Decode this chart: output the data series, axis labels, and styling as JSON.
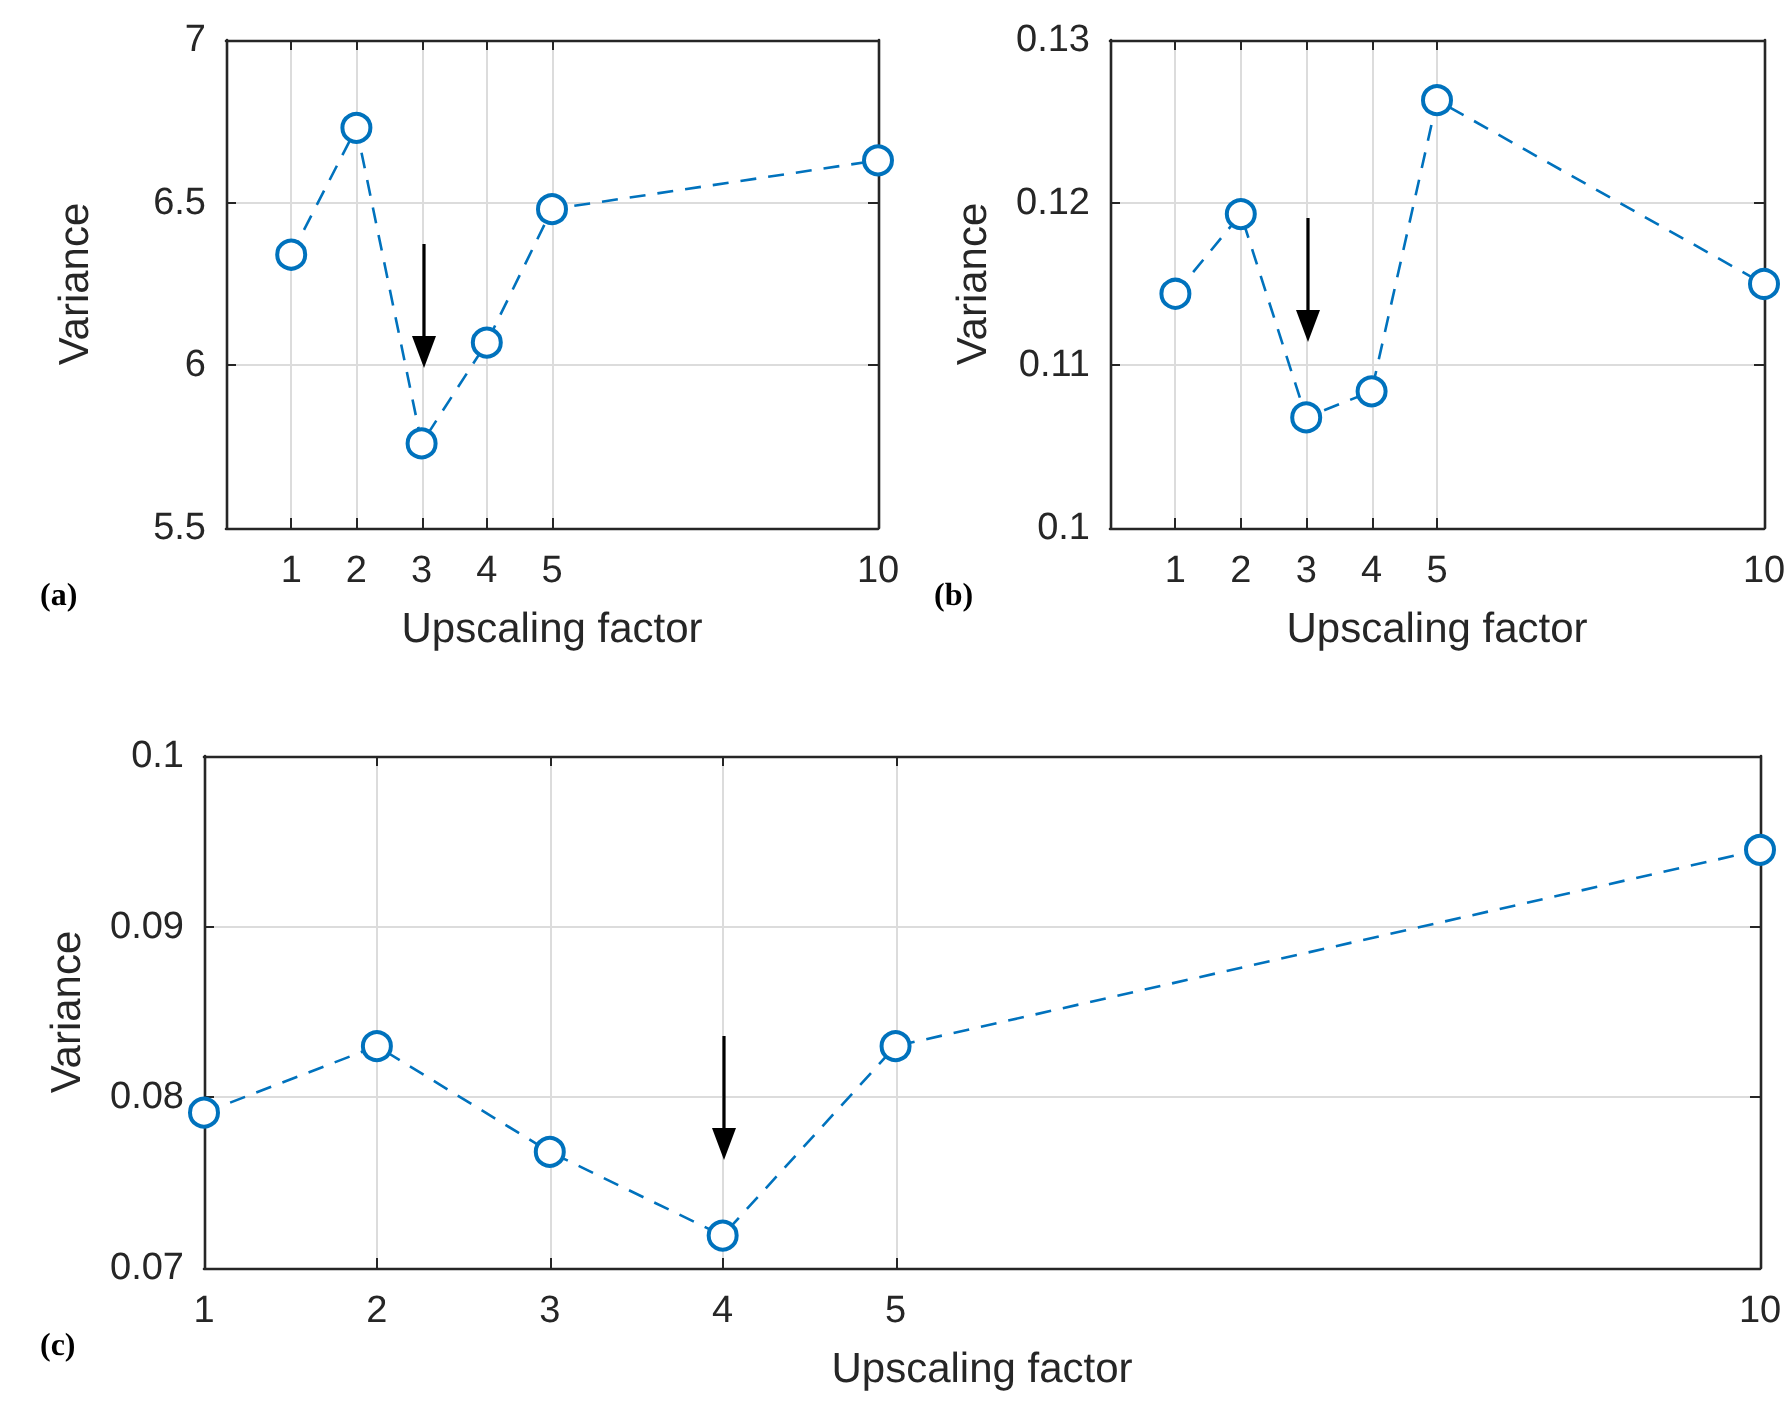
{
  "chart_data": [
    {
      "type": "line",
      "xlabel": "Upscaling factor",
      "ylabel": "Variance",
      "annotations": [
        "(a)"
      ],
      "x": [
        1,
        2,
        3,
        4,
        5,
        10
      ],
      "series": [
        {
          "color": "#0072bd",
          "values": [
            6.34,
            6.73,
            5.76,
            6.07,
            6.48,
            6.63
          ]
        }
      ],
      "xlim": [
        0,
        10
      ],
      "xticks": [
        1,
        2,
        3,
        4,
        5,
        10
      ],
      "ylim": [
        5.5,
        7
      ],
      "yticks": [
        5.5,
        6,
        6.5,
        7
      ],
      "grid": true,
      "marker": "circle",
      "line_style": "dashed"
    },
    {
      "type": "line",
      "xlabel": "Upscaling factor",
      "ylabel": "Variance",
      "annotations": [
        "(b)"
      ],
      "x": [
        1,
        2,
        3,
        4,
        5,
        10
      ],
      "series": [
        {
          "color": "#0072bd",
          "values": [
            0.1144,
            0.1193,
            0.1068,
            0.1084,
            0.1263,
            0.115
          ]
        }
      ],
      "xlim": [
        0,
        10
      ],
      "xticks": [
        1,
        2,
        3,
        4,
        5,
        10
      ],
      "ylim": [
        0.1,
        0.13
      ],
      "yticks": [
        0.1,
        0.11,
        0.12,
        0.13
      ],
      "grid": true,
      "marker": "circle",
      "line_style": "dashed"
    },
    {
      "type": "line",
      "xlabel": "Upscaling factor",
      "ylabel": "Variance",
      "annotations": [
        "(c)"
      ],
      "x": [
        1,
        2,
        3,
        4,
        5,
        10
      ],
      "series": [
        {
          "color": "#0072bd",
          "values": [
            0.0791,
            0.083,
            0.0768,
            0.0719,
            0.083,
            0.0945
          ]
        }
      ],
      "xlim": [
        1,
        10
      ],
      "xticks": [
        1,
        2,
        3,
        4,
        5,
        10
      ],
      "ylim": [
        0.07,
        0.1
      ],
      "yticks": [
        0.07,
        0.08,
        0.09,
        0.1
      ],
      "grid": true,
      "marker": "circle",
      "line_style": "dashed"
    }
  ]
}
